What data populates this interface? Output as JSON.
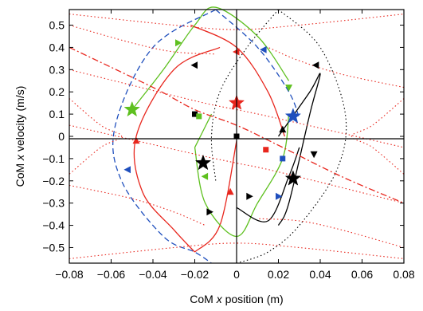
{
  "chart_data": {
    "type": "line",
    "xlabel": "CoM x position (m)",
    "ylabel": "CoM x velocity (m/s)",
    "xlabel_parts": [
      "CoM ",
      "x",
      " position (m)"
    ],
    "ylabel_parts": [
      "CoM ",
      "x",
      " velocity (m/s)"
    ],
    "xlim": [
      -0.08,
      0.08
    ],
    "ylim": [
      -0.57,
      0.57
    ],
    "xticks": [
      -0.08,
      -0.06,
      -0.04,
      -0.02,
      0,
      0.02,
      0.04,
      0.06,
      0.08
    ],
    "xtick_labels": [
      "−0.08",
      "−0.06",
      "−0.04",
      "−0.02",
      "0",
      "0.02",
      "0.04",
      "0.06",
      "0.08"
    ],
    "yticks": [
      0.5,
      0.4,
      0.3,
      0.2,
      0.1,
      0,
      -0.1,
      -0.2,
      -0.3,
      -0.4,
      -0.5
    ],
    "ytick_labels": [
      "0.5",
      "0.4",
      "0.3",
      "0.2",
      "0.1",
      "0",
      "−0.1",
      "−0.2",
      "−0.3",
      "−0.4",
      "−0.5"
    ],
    "grid": false,
    "colors": {
      "red": "#e8261d",
      "green": "#5ec01f",
      "blue": "#1f4fbd",
      "black": "#000000"
    },
    "series": [
      {
        "style": "red-solid",
        "color": "#e8261d",
        "x": [
          -0.008,
          -0.03,
          -0.048,
          -0.045,
          -0.03,
          -0.02
        ],
        "y": [
          0.4,
          0.3,
          0.0,
          -0.25,
          -0.42,
          -0.52
        ]
      },
      {
        "style": "red-solid",
        "color": "#e8261d",
        "x": [
          -0.02,
          -0.008,
          0.0
        ],
        "y": [
          -0.52,
          -0.4,
          -0.02
        ]
      },
      {
        "style": "red-solid",
        "color": "#e8261d",
        "x": [
          -0.022,
          0.0,
          0.015,
          0.023
        ],
        "y": [
          0.5,
          0.4,
          0.2,
          0.0
        ]
      },
      {
        "style": "green-solid",
        "color": "#5ec01f",
        "x": [
          -0.05,
          -0.035,
          -0.02,
          -0.01,
          0.01,
          0.025
        ],
        "y": [
          0.12,
          0.3,
          0.5,
          0.58,
          0.45,
          0.25
        ]
      },
      {
        "style": "green-solid",
        "color": "#5ec01f",
        "x": [
          0.025,
          0.022,
          0.01,
          0.0,
          -0.015,
          -0.02
        ],
        "y": [
          0.1,
          -0.1,
          -0.3,
          -0.45,
          -0.3,
          -0.05
        ]
      },
      {
        "style": "green-solid",
        "color": "#5ec01f",
        "x": [
          -0.02,
          -0.012
        ],
        "y": [
          -0.05,
          0.1
        ]
      },
      {
        "style": "blue-dashed",
        "color": "#1f4fbd",
        "x": [
          -0.01,
          -0.04,
          -0.058,
          -0.055,
          -0.035,
          -0.02,
          -0.012
        ],
        "y": [
          0.57,
          0.4,
          0.05,
          -0.2,
          -0.45,
          -0.52,
          -0.57
        ]
      },
      {
        "style": "blue-dashed",
        "color": "#1f4fbd",
        "x": [
          -0.01,
          0.01,
          0.025,
          0.03
        ],
        "y": [
          0.57,
          0.4,
          0.2,
          0.08
        ]
      },
      {
        "style": "black-solid",
        "color": "#000000",
        "x": [
          0.02,
          0.035,
          0.04,
          0.035,
          0.025,
          0.02
        ],
        "y": [
          0.0,
          0.2,
          0.28,
          0.1,
          -0.3,
          -0.4
        ]
      },
      {
        "style": "black-solid",
        "color": "#000000",
        "x": [
          0.0,
          0.015,
          0.025,
          0.03
        ],
        "y": [
          -0.32,
          -0.38,
          -0.18,
          -0.05
        ]
      },
      {
        "style": "black-dotted",
        "color": "#000000",
        "x": [
          0.02,
          0.04,
          0.052,
          0.048,
          0.03,
          0.015,
          0.0
        ],
        "y": [
          0.57,
          0.4,
          0.1,
          -0.15,
          -0.4,
          -0.52,
          -0.57
        ]
      },
      {
        "style": "black-dotted",
        "color": "#000000",
        "x": [
          0.02,
          0.005,
          -0.008,
          -0.012,
          -0.01
        ],
        "y": [
          0.57,
          0.4,
          0.2,
          0.0,
          -0.2
        ]
      },
      {
        "style": "red-dashdot",
        "color": "#e8261d",
        "x": [
          -0.08,
          -0.04,
          -0.02,
          0.0,
          0.02,
          0.05,
          0.08
        ],
        "y": [
          0.4,
          0.22,
          0.12,
          0.05,
          -0.04,
          -0.18,
          -0.3
        ]
      },
      {
        "style": "red-dotted",
        "color": "#e8261d",
        "x": [
          -0.08,
          -0.065,
          -0.055,
          -0.065,
          -0.08
        ],
        "y": [
          0.17,
          0.05,
          0.0,
          -0.05,
          -0.17
        ]
      },
      {
        "style": "red-dotted",
        "color": "#e8261d",
        "x": [
          0.08,
          0.065,
          0.055,
          0.065,
          0.08
        ],
        "y": [
          0.17,
          0.05,
          0.0,
          -0.05,
          -0.17
        ]
      },
      {
        "style": "red-dotted",
        "color": "#e8261d",
        "x": [
          -0.08,
          -0.02,
          0.0,
          0.02,
          0.08
        ],
        "y": [
          0.3,
          0.16,
          0.12,
          0.08,
          -0.05
        ]
      },
      {
        "style": "red-dotted",
        "color": "#e8261d",
        "x": [
          -0.08,
          -0.02,
          0.0,
          0.02,
          0.08
        ],
        "y": [
          0.05,
          -0.08,
          -0.12,
          -0.16,
          -0.3
        ]
      },
      {
        "style": "red-dotted",
        "color": "#e8261d",
        "x": [
          -0.08,
          -0.05,
          -0.03,
          -0.01
        ],
        "y": [
          0.5,
          0.42,
          0.38,
          0.37
        ]
      },
      {
        "style": "red-dotted",
        "color": "#e8261d",
        "x": [
          -0.08,
          -0.05,
          -0.03,
          -0.015
        ],
        "y": [
          -0.22,
          -0.28,
          -0.34,
          -0.4
        ]
      },
      {
        "style": "red-dotted",
        "color": "#e8261d",
        "x": [
          0.08,
          0.05,
          0.03,
          0.015
        ],
        "y": [
          0.22,
          0.28,
          0.34,
          0.4
        ]
      },
      {
        "style": "red-dotted",
        "color": "#e8261d",
        "x": [
          0.08,
          0.05,
          0.03,
          0.01
        ],
        "y": [
          -0.5,
          -0.42,
          -0.38,
          -0.37
        ]
      },
      {
        "style": "red-dotted",
        "color": "#e8261d",
        "x": [
          -0.08,
          -0.03,
          0.0,
          0.03,
          0.08
        ],
        "y": [
          -0.55,
          -0.5,
          -0.48,
          -0.5,
          -0.55
        ]
      },
      {
        "style": "red-dotted",
        "color": "#e8261d",
        "x": [
          -0.08,
          -0.03,
          0.0,
          0.03,
          0.08
        ],
        "y": [
          0.55,
          0.5,
          0.48,
          0.5,
          0.55
        ]
      }
    ],
    "markers": [
      {
        "shape": "star",
        "color": "#5ec01f",
        "x": -0.05,
        "y": 0.12
      },
      {
        "shape": "star",
        "color": "#e8261d",
        "x": 0.0,
        "y": 0.15
      },
      {
        "shape": "star",
        "color": "#1f4fbd",
        "x": 0.027,
        "y": 0.09
      },
      {
        "shape": "star",
        "color": "#000000",
        "x": -0.016,
        "y": -0.12
      },
      {
        "shape": "star",
        "color": "#000000",
        "x": 0.027,
        "y": -0.19
      },
      {
        "shape": "square",
        "color": "#000000",
        "x": -0.02,
        "y": 0.1
      },
      {
        "shape": "square",
        "color": "#000000",
        "x": 0.0,
        "y": 0.0
      },
      {
        "shape": "square",
        "color": "#e8261d",
        "x": 0.014,
        "y": -0.06
      },
      {
        "shape": "square",
        "color": "#1f4fbd",
        "x": 0.022,
        "y": -0.1
      },
      {
        "shape": "square",
        "color": "#5ec01f",
        "x": -0.018,
        "y": 0.09
      },
      {
        "shape": "tri-up",
        "color": "#e8261d",
        "x": -0.048,
        "y": -0.02
      },
      {
        "shape": "tri-right",
        "color": "#5ec01f",
        "x": -0.028,
        "y": 0.42
      },
      {
        "shape": "tri-left",
        "color": "#e8261d",
        "x": 0.0,
        "y": 0.38
      },
      {
        "shape": "tri-left",
        "color": "#1f4fbd",
        "x": 0.013,
        "y": 0.39
      },
      {
        "shape": "tri-left",
        "color": "#1f4fbd",
        "x": -0.052,
        "y": -0.15
      },
      {
        "shape": "tri-left",
        "color": "#000000",
        "x": -0.02,
        "y": 0.32
      },
      {
        "shape": "tri-left",
        "color": "#000000",
        "x": 0.038,
        "y": 0.32
      },
      {
        "shape": "tri-down",
        "color": "#5ec01f",
        "x": 0.025,
        "y": 0.22
      },
      {
        "shape": "tri-down",
        "color": "#000000",
        "x": 0.037,
        "y": -0.08
      },
      {
        "shape": "tri-up",
        "color": "#000000",
        "x": 0.022,
        "y": 0.03
      },
      {
        "shape": "tri-up",
        "color": "#e8261d",
        "x": -0.003,
        "y": -0.25
      },
      {
        "shape": "tri-right",
        "color": "#000000",
        "x": -0.013,
        "y": -0.34
      },
      {
        "shape": "tri-right",
        "color": "#000000",
        "x": 0.006,
        "y": -0.27
      },
      {
        "shape": "tri-right",
        "color": "#1f4fbd",
        "x": 0.02,
        "y": -0.27
      },
      {
        "shape": "tri-left",
        "color": "#5ec01f",
        "x": -0.015,
        "y": -0.18
      }
    ]
  }
}
